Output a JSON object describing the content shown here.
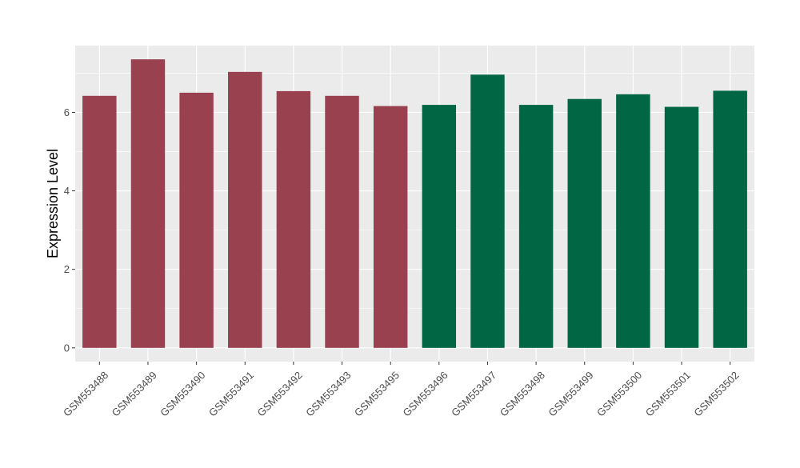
{
  "chart_data": {
    "type": "bar",
    "title": "",
    "xlabel": "",
    "ylabel": "Expression Level",
    "categories": [
      "GSM553488",
      "GSM553489",
      "GSM553490",
      "GSM553491",
      "GSM553492",
      "GSM553493",
      "GSM553495",
      "GSM553496",
      "GSM553497",
      "GSM553498",
      "GSM553499",
      "GSM553500",
      "GSM553501",
      "GSM553502"
    ],
    "values": [
      6.42,
      7.35,
      6.5,
      7.03,
      6.54,
      6.42,
      6.16,
      6.19,
      6.96,
      6.19,
      6.34,
      6.46,
      6.14,
      6.55
    ],
    "bar_colors": [
      "#9a4150",
      "#9a4150",
      "#9a4150",
      "#9a4150",
      "#9a4150",
      "#9a4150",
      "#9a4150",
      "#006644",
      "#006644",
      "#006644",
      "#006644",
      "#006644",
      "#006644",
      "#006644"
    ],
    "ylim": [
      -0.35,
      7.7
    ],
    "yticks": [
      0,
      2,
      4,
      6
    ],
    "grid": true,
    "panel_background": "#ebebeb",
    "grid_color": "#ffffff"
  }
}
